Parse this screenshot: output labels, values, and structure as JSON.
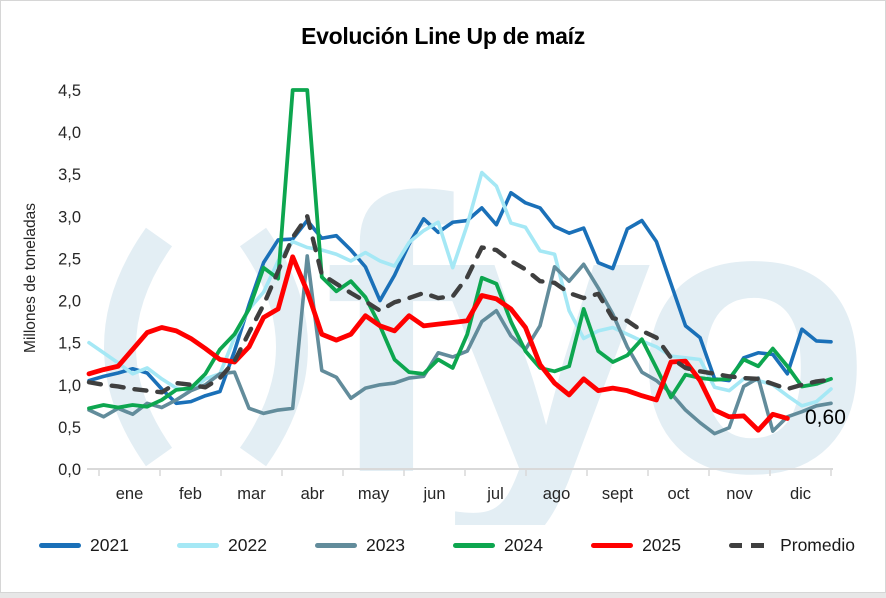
{
  "chart_data": {
    "type": "line",
    "title": "Evolución Line Up de maíz",
    "ylabel": "Millones de toneladas",
    "ylim": [
      0,
      4.5
    ],
    "grid": false,
    "legend_position": "bottom",
    "points_per_year": 52,
    "y_ticks": [
      {
        "v": 0.0,
        "label": "0,0"
      },
      {
        "v": 0.5,
        "label": "0,5"
      },
      {
        "v": 1.0,
        "label": "1,0"
      },
      {
        "v": 1.5,
        "label": "1,5"
      },
      {
        "v": 2.0,
        "label": "2,0"
      },
      {
        "v": 2.5,
        "label": "2,5"
      },
      {
        "v": 3.0,
        "label": "3,0"
      },
      {
        "v": 3.5,
        "label": "3,5"
      },
      {
        "v": 4.0,
        "label": "4,0"
      },
      {
        "v": 4.5,
        "label": "4,5"
      }
    ],
    "categories_months": [
      "ene",
      "feb",
      "mar",
      "abr",
      "may",
      "jun",
      "jul",
      "ago",
      "sept",
      "oct",
      "nov",
      "dic"
    ],
    "end_label": {
      "series": "2025",
      "text": "0,60",
      "value": 0.6
    },
    "series": [
      {
        "name": "2021",
        "color": "#1A70B8",
        "stroke_width": 3.6,
        "dash": null,
        "values": [
          1.05,
          1.1,
          1.14,
          1.19,
          1.14,
          0.95,
          0.78,
          0.8,
          0.87,
          0.92,
          1.4,
          1.95,
          2.45,
          2.72,
          2.73,
          2.95,
          2.74,
          2.77,
          2.6,
          2.4,
          2.0,
          2.3,
          2.67,
          2.97,
          2.81,
          2.93,
          2.95,
          3.1,
          2.9,
          3.28,
          3.16,
          3.1,
          2.88,
          2.8,
          2.86,
          2.45,
          2.38,
          2.85,
          2.95,
          2.7,
          2.2,
          1.7,
          1.56,
          1.07,
          1.05,
          1.32,
          1.38,
          1.36,
          1.13,
          1.66,
          1.52,
          1.51
        ]
      },
      {
        "name": "2022",
        "color": "#A5E8F5",
        "stroke_width": 3.6,
        "dash": null,
        "values": [
          1.5,
          1.38,
          1.26,
          1.13,
          1.2,
          1.07,
          0.96,
          0.93,
          1.07,
          1.13,
          1.56,
          1.9,
          2.1,
          2.47,
          2.7,
          2.63,
          2.6,
          2.55,
          2.47,
          2.57,
          2.47,
          2.41,
          2.69,
          2.83,
          2.93,
          2.39,
          2.9,
          3.52,
          3.36,
          2.92,
          2.87,
          2.59,
          2.55,
          1.88,
          1.55,
          1.64,
          1.68,
          1.6,
          1.52,
          1.45,
          1.34,
          1.32,
          1.3,
          0.97,
          0.93,
          1.07,
          1.05,
          1.0,
          0.87,
          0.75,
          0.8,
          0.95
        ]
      },
      {
        "name": "2023",
        "color": "#628C9B",
        "stroke_width": 3.6,
        "dash": null,
        "values": [
          0.7,
          0.62,
          0.72,
          0.65,
          0.78,
          0.73,
          0.82,
          0.93,
          1.0,
          1.13,
          1.15,
          0.72,
          0.66,
          0.7,
          0.72,
          2.53,
          1.17,
          1.09,
          0.84,
          0.96,
          1.0,
          1.02,
          1.08,
          1.1,
          1.38,
          1.33,
          1.4,
          1.75,
          1.88,
          1.58,
          1.42,
          1.7,
          2.4,
          2.23,
          2.43,
          2.15,
          1.84,
          1.45,
          1.15,
          1.05,
          0.9,
          0.7,
          0.55,
          0.42,
          0.49,
          0.98,
          1.08,
          0.45,
          0.62,
          0.68,
          0.75,
          0.78
        ]
      },
      {
        "name": "2024",
        "color": "#0DA64F",
        "stroke_width": 3.8,
        "dash": null,
        "values": [
          0.72,
          0.76,
          0.73,
          0.76,
          0.74,
          0.82,
          0.94,
          0.96,
          1.13,
          1.42,
          1.6,
          1.9,
          2.39,
          2.26,
          4.5,
          4.5,
          2.28,
          2.11,
          2.23,
          2.04,
          1.7,
          1.3,
          1.15,
          1.13,
          1.3,
          1.2,
          1.6,
          2.27,
          2.2,
          1.75,
          1.4,
          1.2,
          1.16,
          1.22,
          1.9,
          1.4,
          1.27,
          1.35,
          1.54,
          1.2,
          0.85,
          1.12,
          1.08,
          1.06,
          1.07,
          1.3,
          1.22,
          1.43,
          1.22,
          0.98,
          1.01,
          1.07
        ]
      },
      {
        "name": "2025",
        "color": "#FF0000",
        "stroke_width": 4.8,
        "dash": null,
        "values": [
          1.13,
          1.18,
          1.22,
          1.42,
          1.62,
          1.68,
          1.64,
          1.55,
          1.43,
          1.3,
          1.27,
          1.45,
          1.8,
          1.9,
          2.52,
          2.11,
          1.6,
          1.53,
          1.6,
          1.82,
          1.7,
          1.64,
          1.82,
          1.7,
          1.72,
          1.74,
          1.76,
          2.06,
          2.02,
          1.9,
          1.68,
          1.24,
          1.02,
          0.88,
          1.07,
          0.93,
          0.96,
          0.93,
          0.87,
          0.82,
          1.27,
          1.28,
          1.05,
          0.7,
          0.62,
          0.63,
          0.46,
          0.65,
          0.6
        ]
      },
      {
        "name": "Promedio",
        "color": "#3F3F3F",
        "stroke_width": 4.4,
        "dash": "12 11",
        "values": [
          1.03,
          1.0,
          0.98,
          0.95,
          0.93,
          0.91,
          1.02,
          1.0,
          0.97,
          1.08,
          1.28,
          1.62,
          1.95,
          2.35,
          2.75,
          3.0,
          2.31,
          2.2,
          2.09,
          1.99,
          1.88,
          1.98,
          2.03,
          2.09,
          2.03,
          2.05,
          2.28,
          2.63,
          2.6,
          2.47,
          2.37,
          2.23,
          2.21,
          2.09,
          2.03,
          2.08,
          1.79,
          1.76,
          1.64,
          1.56,
          1.32,
          1.2,
          1.16,
          1.13,
          1.1,
          1.08,
          1.07,
          1.01,
          0.95,
          1.0,
          1.04,
          1.06
        ]
      }
    ]
  },
  "watermark": {
    "text": "fyo",
    "color": "#E3EEF4"
  },
  "axis_style": {
    "line_color": "#D9D9D9",
    "text_color": "#262626"
  }
}
